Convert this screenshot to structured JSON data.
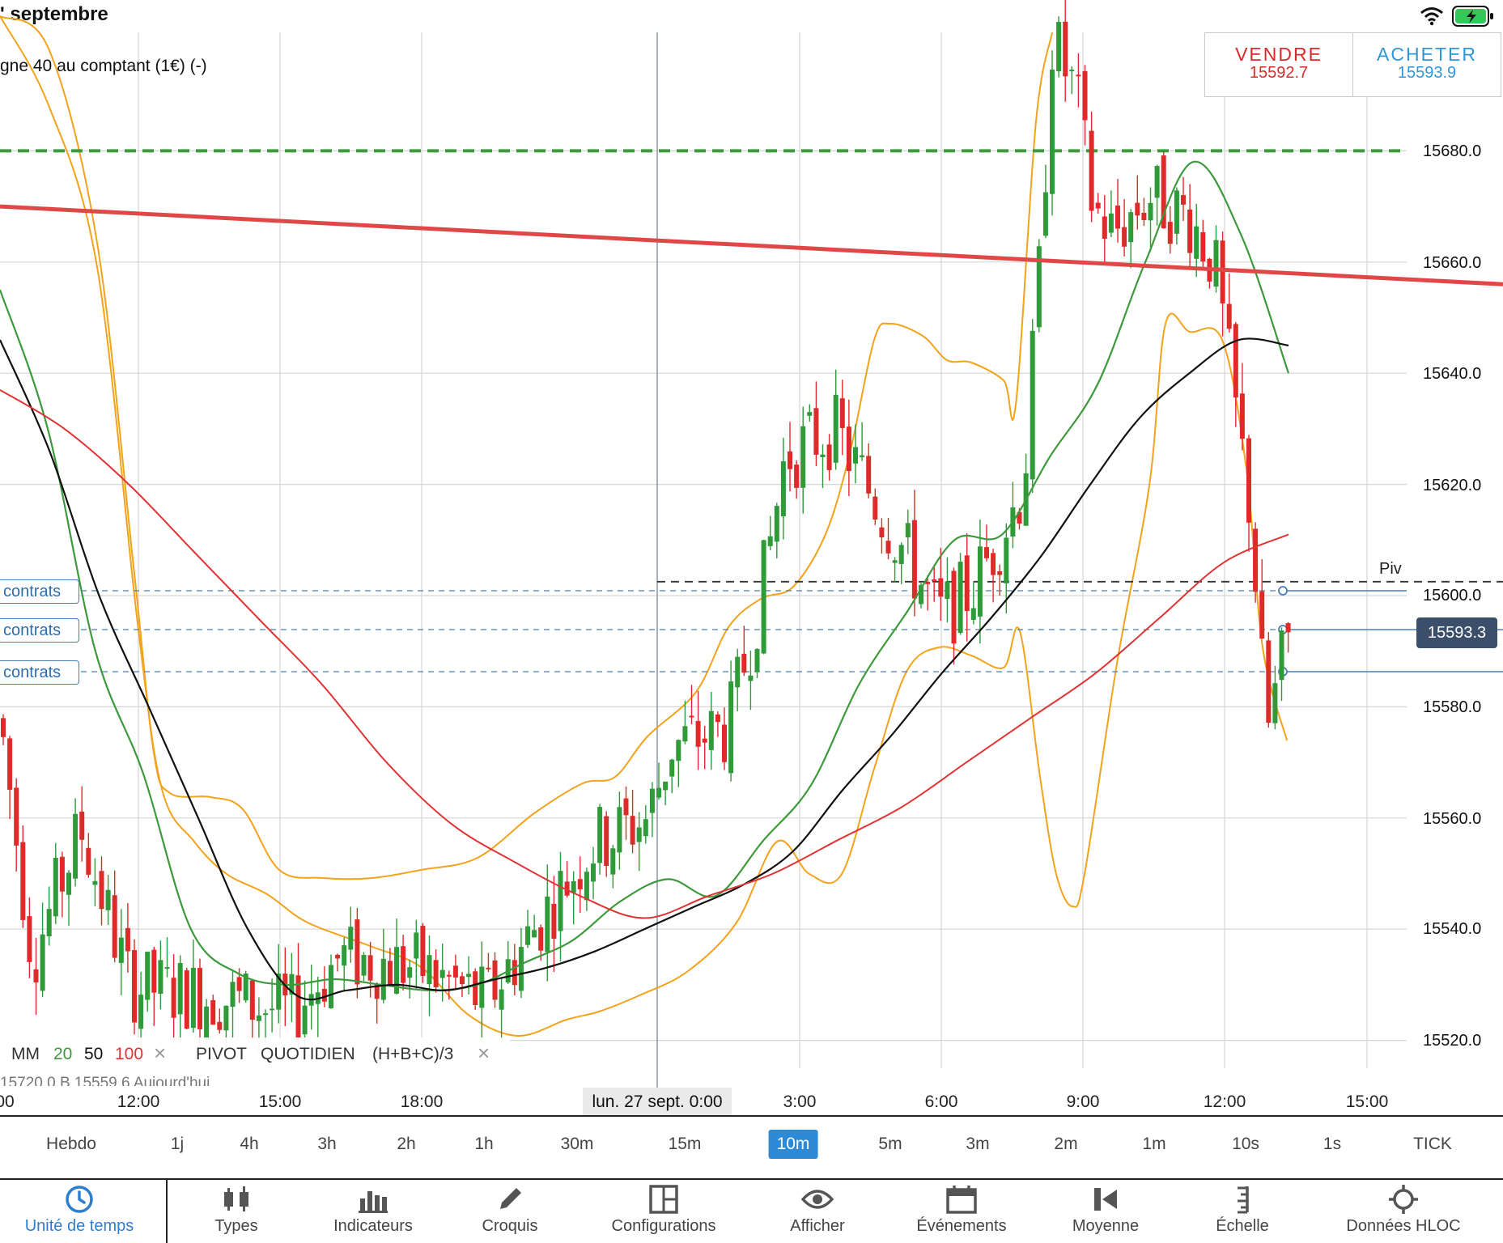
{
  "status_bar": {
    "date": "' septembre"
  },
  "instrument": {
    "title": "gne 40 au comptant (1€) (-)"
  },
  "trade": {
    "sell_label": "VENDRE",
    "sell_price": "15592.7",
    "buy_label": "ACHETER",
    "buy_price": "15593.9"
  },
  "price_axis": {
    "ticks": [
      "15680.0",
      "15660.0",
      "15640.0",
      "15620.0",
      "15600.0",
      "15580.0",
      "15560.0",
      "15540.0",
      "15520.0"
    ],
    "last_price": "15593.3"
  },
  "positions": [
    "contrats",
    "contrats",
    "contrats"
  ],
  "pivot_label": "Piv",
  "legend": {
    "mm": "MM",
    "mm20": "20",
    "mm50": "50",
    "mm100": "100",
    "pivot": "PIVOT",
    "quotidien": "QUOTIDIEN",
    "formula": "(H+B+C)/3"
  },
  "info_row": "15720.0     B 15559.6     Aujourd'hui",
  "time_axis": {
    "ticks": [
      "00",
      "12:00",
      "15:00",
      "18:00",
      "3:00",
      "6:00",
      "9:00",
      "12:00",
      "15:00"
    ],
    "date_label": "lun. 27 sept. 0:00"
  },
  "timeframes": {
    "items": [
      "Hebdo",
      "1j",
      "4h",
      "3h",
      "2h",
      "1h",
      "30m",
      "15m",
      "10m",
      "5m",
      "3m",
      "2m",
      "1m",
      "10s",
      "1s",
      "TICK"
    ],
    "selected": "10m"
  },
  "toolbar": [
    {
      "label": "Unité de temps",
      "icon": "clock-icon"
    },
    {
      "label": "Types",
      "icon": "candles-icon"
    },
    {
      "label": "Indicateurs",
      "icon": "bar-chart-icon"
    },
    {
      "label": "Croquis",
      "icon": "pencil-icon"
    },
    {
      "label": "Configurations",
      "icon": "layout-icon"
    },
    {
      "label": "Afficher",
      "icon": "eye-icon"
    },
    {
      "label": "Événements",
      "icon": "calendar-icon"
    },
    {
      "label": "Moyenne",
      "icon": "average-icon"
    },
    {
      "label": "Échelle",
      "icon": "scale-icon"
    },
    {
      "label": "Données HLOC",
      "icon": "crosshair-icon"
    }
  ],
  "colors": {
    "bull": "#2e9a38",
    "bear": "#df2a2a",
    "mm20": "#3c9a3c",
    "mm50": "#111111",
    "mm100": "#e03434",
    "bollinger": "#f3a31b",
    "trendline": "#e04848",
    "resistance": "#3f9a3f",
    "selected": "#2d8ad6"
  },
  "chart_data": {
    "type": "candlestick",
    "timeframe": "10m",
    "ylim": [
      15510,
      15700
    ],
    "y_ticks": [
      15520,
      15540,
      15560,
      15580,
      15600,
      15620,
      15640,
      15660,
      15680
    ],
    "x_ticks": [
      "00",
      "12:00",
      "15:00",
      "18:00",
      "lun. 27 sept. 0:00",
      "3:00",
      "6:00",
      "9:00",
      "12:00",
      "15:00"
    ],
    "indicators": [
      "MM 20",
      "MM 50",
      "MM 100",
      "PIVOT QUOTIDIEN (H+B+C)/3"
    ],
    "levels": {
      "resistance": 15680.0,
      "pivot": 15602.5,
      "last": 15593.3,
      "sell": 15592.7,
      "buy": 15593.9
    },
    "trendline": {
      "start": 15670,
      "end": 15656
    },
    "series": [
      {
        "name": "MM 20",
        "values": [
          15655,
          15630,
          15590,
          15568,
          15540,
          15532,
          15530,
          15531,
          15530,
          15529,
          15530,
          15534,
          15538,
          15545,
          15549,
          15546,
          15556,
          15566,
          15584,
          15597,
          15610,
          15611,
          15625,
          15638,
          15660,
          15678,
          15665,
          15640
        ]
      },
      {
        "name": "MM 50",
        "values": [
          15646,
          15626,
          15600,
          15580,
          15560,
          15540,
          15528,
          15529,
          15530,
          15529,
          15531,
          15533,
          15536,
          15540,
          15544,
          15548,
          15554,
          15565,
          15575,
          15586,
          15596,
          15607,
          15620,
          15632,
          15640,
          15646,
          15645
        ]
      },
      {
        "name": "MM 100",
        "values": [
          15637,
          15630,
          15620,
          15608,
          15596,
          15584,
          15570,
          15559,
          15552,
          15546,
          15542,
          15546,
          15550,
          15556,
          15562,
          15570,
          15578,
          15586,
          15596,
          15606,
          15611
        ]
      }
    ]
  }
}
